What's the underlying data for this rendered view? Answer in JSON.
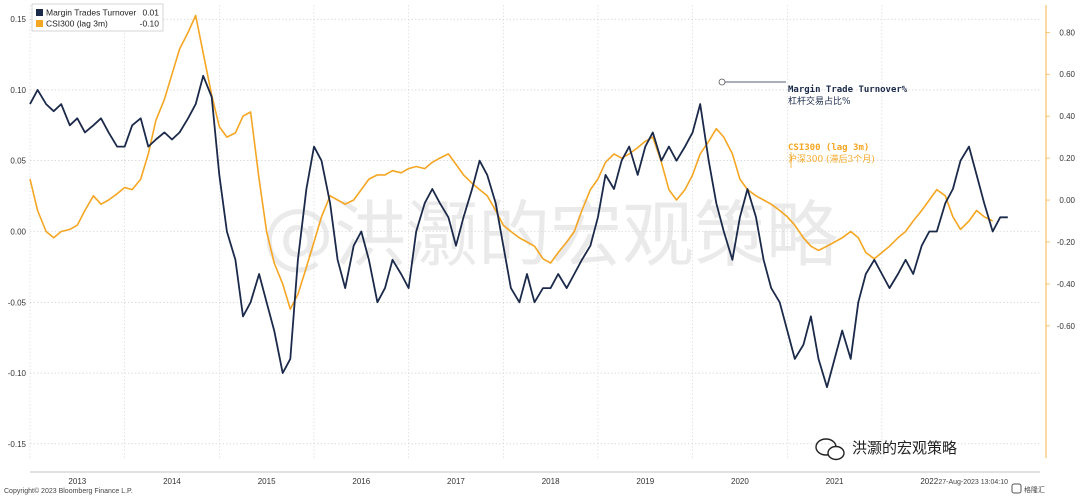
{
  "chart_data": {
    "type": "line",
    "legend": [
      {
        "label": "Margin Trades Turnover",
        "value": "0.01",
        "color": "#1b2a4a"
      },
      {
        "label": "CSI300 (lag 3m)",
        "value": "-0.10",
        "color": "#f5a623"
      }
    ],
    "left_axis": {
      "ylim": [
        -0.16,
        0.16
      ],
      "ticks": [
        "0.15",
        "0.10",
        "0.05",
        "0.00",
        "-0.05",
        "-0.10",
        "-0.15"
      ]
    },
    "right_axis": {
      "ylim": [
        -1.23,
        0.93
      ],
      "ticks": [
        "0.80",
        "0.60",
        "0.40",
        "0.20",
        "0.00",
        "-0.20",
        "-0.40",
        "-0.60"
      ]
    },
    "x_axis": {
      "range": [
        2013.0,
        2023.67
      ],
      "ticks": [
        "2013",
        "2014",
        "2015",
        "2016",
        "2017",
        "2018",
        "2019",
        "2020",
        "2021",
        "2022"
      ]
    },
    "series": [
      {
        "name": "Margin Trades Turnover",
        "axis": "left",
        "color": "#1b2a4a",
        "points": [
          [
            2013.0,
            0.09
          ],
          [
            2013.08,
            0.1
          ],
          [
            2013.17,
            0.09
          ],
          [
            2013.25,
            0.085
          ],
          [
            2013.33,
            0.09
          ],
          [
            2013.42,
            0.075
          ],
          [
            2013.5,
            0.08
          ],
          [
            2013.58,
            0.07
          ],
          [
            2013.67,
            0.075
          ],
          [
            2013.75,
            0.08
          ],
          [
            2013.83,
            0.07
          ],
          [
            2013.92,
            0.06
          ],
          [
            2014.0,
            0.06
          ],
          [
            2014.08,
            0.075
          ],
          [
            2014.17,
            0.08
          ],
          [
            2014.25,
            0.06
          ],
          [
            2014.33,
            0.065
          ],
          [
            2014.42,
            0.07
          ],
          [
            2014.5,
            0.065
          ],
          [
            2014.58,
            0.07
          ],
          [
            2014.67,
            0.08
          ],
          [
            2014.75,
            0.09
          ],
          [
            2014.83,
            0.11
          ],
          [
            2014.92,
            0.095
          ],
          [
            2015.0,
            0.04
          ],
          [
            2015.08,
            0.0
          ],
          [
            2015.17,
            -0.02
          ],
          [
            2015.25,
            -0.06
          ],
          [
            2015.33,
            -0.05
          ],
          [
            2015.42,
            -0.03
          ],
          [
            2015.5,
            -0.05
          ],
          [
            2015.58,
            -0.07
          ],
          [
            2015.67,
            -0.1
          ],
          [
            2015.75,
            -0.09
          ],
          [
            2015.83,
            -0.02
          ],
          [
            2015.92,
            0.03
          ],
          [
            2016.0,
            0.06
          ],
          [
            2016.08,
            0.05
          ],
          [
            2016.17,
            0.02
          ],
          [
            2016.25,
            -0.02
          ],
          [
            2016.33,
            -0.04
          ],
          [
            2016.42,
            -0.01
          ],
          [
            2016.5,
            0.0
          ],
          [
            2016.58,
            -0.02
          ],
          [
            2016.67,
            -0.05
          ],
          [
            2016.75,
            -0.04
          ],
          [
            2016.83,
            -0.02
          ],
          [
            2016.92,
            -0.03
          ],
          [
            2017.0,
            -0.04
          ],
          [
            2017.08,
            0.0
          ],
          [
            2017.17,
            0.02
          ],
          [
            2017.25,
            0.03
          ],
          [
            2017.33,
            0.02
          ],
          [
            2017.42,
            0.01
          ],
          [
            2017.5,
            -0.01
          ],
          [
            2017.58,
            0.01
          ],
          [
            2017.67,
            0.03
          ],
          [
            2017.75,
            0.05
          ],
          [
            2017.83,
            0.04
          ],
          [
            2017.92,
            0.02
          ],
          [
            2018.0,
            -0.01
          ],
          [
            2018.08,
            -0.04
          ],
          [
            2018.17,
            -0.05
          ],
          [
            2018.25,
            -0.03
          ],
          [
            2018.33,
            -0.05
          ],
          [
            2018.42,
            -0.04
          ],
          [
            2018.5,
            -0.04
          ],
          [
            2018.58,
            -0.03
          ],
          [
            2018.67,
            -0.04
          ],
          [
            2018.75,
            -0.03
          ],
          [
            2018.83,
            -0.02
          ],
          [
            2018.92,
            -0.01
          ],
          [
            2019.0,
            0.01
          ],
          [
            2019.08,
            0.04
          ],
          [
            2019.17,
            0.03
          ],
          [
            2019.25,
            0.05
          ],
          [
            2019.33,
            0.06
          ],
          [
            2019.42,
            0.04
          ],
          [
            2019.5,
            0.06
          ],
          [
            2019.58,
            0.07
          ],
          [
            2019.67,
            0.05
          ],
          [
            2019.75,
            0.06
          ],
          [
            2019.83,
            0.05
          ],
          [
            2019.92,
            0.06
          ],
          [
            2020.0,
            0.07
          ],
          [
            2020.08,
            0.09
          ],
          [
            2020.17,
            0.05
          ],
          [
            2020.25,
            0.02
          ],
          [
            2020.33,
            0.0
          ],
          [
            2020.42,
            -0.02
          ],
          [
            2020.5,
            0.01
          ],
          [
            2020.58,
            0.03
          ],
          [
            2020.67,
            0.01
          ],
          [
            2020.75,
            -0.02
          ],
          [
            2020.83,
            -0.04
          ],
          [
            2020.92,
            -0.05
          ],
          [
            2021.0,
            -0.07
          ],
          [
            2021.08,
            -0.09
          ],
          [
            2021.17,
            -0.08
          ],
          [
            2021.25,
            -0.06
          ],
          [
            2021.33,
            -0.09
          ],
          [
            2021.42,
            -0.11
          ],
          [
            2021.5,
            -0.09
          ],
          [
            2021.58,
            -0.07
          ],
          [
            2021.67,
            -0.09
          ],
          [
            2021.75,
            -0.05
          ],
          [
            2021.83,
            -0.03
          ],
          [
            2021.92,
            -0.02
          ],
          [
            2022.0,
            -0.03
          ],
          [
            2022.08,
            -0.04
          ],
          [
            2022.17,
            -0.03
          ],
          [
            2022.25,
            -0.02
          ],
          [
            2022.33,
            -0.03
          ],
          [
            2022.42,
            -0.01
          ],
          [
            2022.5,
            0.0
          ],
          [
            2022.58,
            0.0
          ],
          [
            2022.67,
            0.02
          ],
          [
            2022.75,
            0.03
          ],
          [
            2022.83,
            0.05
          ],
          [
            2022.92,
            0.06
          ],
          [
            2023.0,
            0.04
          ],
          [
            2023.08,
            0.02
          ],
          [
            2023.17,
            0.0
          ],
          [
            2023.25,
            0.01
          ],
          [
            2023.33,
            0.01
          ]
        ]
      },
      {
        "name": "CSI300 (lag 3m)",
        "axis": "right",
        "color": "#f5a623",
        "points": [
          [
            2013.0,
            0.1
          ],
          [
            2013.08,
            -0.05
          ],
          [
            2013.17,
            -0.15
          ],
          [
            2013.25,
            -0.18
          ],
          [
            2013.33,
            -0.15
          ],
          [
            2013.42,
            -0.14
          ],
          [
            2013.5,
            -0.12
          ],
          [
            2013.58,
            -0.05
          ],
          [
            2013.67,
            0.02
          ],
          [
            2013.75,
            -0.02
          ],
          [
            2013.83,
            0.0
          ],
          [
            2013.92,
            0.03
          ],
          [
            2014.0,
            0.06
          ],
          [
            2014.08,
            0.05
          ],
          [
            2014.17,
            0.1
          ],
          [
            2014.25,
            0.22
          ],
          [
            2014.33,
            0.38
          ],
          [
            2014.42,
            0.48
          ],
          [
            2014.5,
            0.6
          ],
          [
            2014.58,
            0.72
          ],
          [
            2014.67,
            0.8
          ],
          [
            2014.75,
            0.88
          ],
          [
            2014.83,
            0.7
          ],
          [
            2014.92,
            0.5
          ],
          [
            2015.0,
            0.35
          ],
          [
            2015.08,
            0.3
          ],
          [
            2015.17,
            0.32
          ],
          [
            2015.25,
            0.4
          ],
          [
            2015.33,
            0.42
          ],
          [
            2015.42,
            0.1
          ],
          [
            2015.5,
            -0.15
          ],
          [
            2015.58,
            -0.3
          ],
          [
            2015.67,
            -0.4
          ],
          [
            2015.75,
            -0.52
          ],
          [
            2015.83,
            -0.45
          ],
          [
            2015.92,
            -0.32
          ],
          [
            2016.0,
            -0.2
          ],
          [
            2016.08,
            -0.08
          ],
          [
            2016.17,
            0.02
          ],
          [
            2016.25,
            0.0
          ],
          [
            2016.33,
            -0.02
          ],
          [
            2016.42,
            0.0
          ],
          [
            2016.5,
            0.05
          ],
          [
            2016.58,
            0.1
          ],
          [
            2016.67,
            0.12
          ],
          [
            2016.75,
            0.12
          ],
          [
            2016.83,
            0.14
          ],
          [
            2016.92,
            0.13
          ],
          [
            2017.0,
            0.15
          ],
          [
            2017.08,
            0.16
          ],
          [
            2017.17,
            0.15
          ],
          [
            2017.25,
            0.18
          ],
          [
            2017.33,
            0.2
          ],
          [
            2017.42,
            0.22
          ],
          [
            2017.5,
            0.17
          ],
          [
            2017.58,
            0.12
          ],
          [
            2017.67,
            0.08
          ],
          [
            2017.75,
            0.05
          ],
          [
            2017.83,
            0.02
          ],
          [
            2017.92,
            -0.05
          ],
          [
            2018.0,
            -0.12
          ],
          [
            2018.08,
            -0.15
          ],
          [
            2018.17,
            -0.18
          ],
          [
            2018.25,
            -0.2
          ],
          [
            2018.33,
            -0.22
          ],
          [
            2018.42,
            -0.28
          ],
          [
            2018.5,
            -0.3
          ],
          [
            2018.58,
            -0.25
          ],
          [
            2018.67,
            -0.2
          ],
          [
            2018.75,
            -0.15
          ],
          [
            2018.83,
            -0.05
          ],
          [
            2018.92,
            0.05
          ],
          [
            2019.0,
            0.1
          ],
          [
            2019.08,
            0.18
          ],
          [
            2019.17,
            0.22
          ],
          [
            2019.25,
            0.2
          ],
          [
            2019.33,
            0.22
          ],
          [
            2019.42,
            0.25
          ],
          [
            2019.5,
            0.28
          ],
          [
            2019.58,
            0.3
          ],
          [
            2019.67,
            0.18
          ],
          [
            2019.75,
            0.05
          ],
          [
            2019.83,
            0.0
          ],
          [
            2019.92,
            0.05
          ],
          [
            2020.0,
            0.12
          ],
          [
            2020.08,
            0.22
          ],
          [
            2020.17,
            0.28
          ],
          [
            2020.25,
            0.34
          ],
          [
            2020.33,
            0.3
          ],
          [
            2020.42,
            0.22
          ],
          [
            2020.5,
            0.1
          ],
          [
            2020.58,
            0.05
          ],
          [
            2020.67,
            0.02
          ],
          [
            2020.75,
            0.0
          ],
          [
            2020.83,
            -0.02
          ],
          [
            2020.92,
            -0.05
          ],
          [
            2021.0,
            -0.08
          ],
          [
            2021.08,
            -0.12
          ],
          [
            2021.17,
            -0.18
          ],
          [
            2021.25,
            -0.22
          ],
          [
            2021.33,
            -0.24
          ],
          [
            2021.42,
            -0.22
          ],
          [
            2021.5,
            -0.2
          ],
          [
            2021.58,
            -0.18
          ],
          [
            2021.67,
            -0.15
          ],
          [
            2021.75,
            -0.18
          ],
          [
            2021.83,
            -0.25
          ],
          [
            2021.92,
            -0.28
          ],
          [
            2022.0,
            -0.25
          ],
          [
            2022.08,
            -0.22
          ],
          [
            2022.17,
            -0.18
          ],
          [
            2022.25,
            -0.15
          ],
          [
            2022.33,
            -0.1
          ],
          [
            2022.42,
            -0.05
          ],
          [
            2022.5,
            0.0
          ],
          [
            2022.58,
            0.05
          ],
          [
            2022.67,
            0.02
          ],
          [
            2022.75,
            -0.08
          ],
          [
            2022.83,
            -0.14
          ],
          [
            2022.92,
            -0.1
          ],
          [
            2023.0,
            -0.05
          ],
          [
            2023.08,
            -0.08
          ],
          [
            2023.17,
            -0.1
          ]
        ]
      }
    ],
    "annotations": [
      {
        "text": "Margin Trade Turnover%",
        "color": "#1b2a4a"
      },
      {
        "text": "杠杆交易占比%",
        "color": "#1b2a4a"
      },
      {
        "text": "CSI300 (lag 3m)",
        "color": "#f5a623"
      },
      {
        "text": "沪深300 (滞后3个月)",
        "color": "#f5a623"
      }
    ],
    "grid": true,
    "legend_position": "top-left"
  },
  "watermark": {
    "text": "@洪灏的宏观策略",
    "label": "洪灏的宏观策略",
    "brand": "格隆汇"
  },
  "footer": {
    "copyright": "Copyright© 2023 Bloomberg Finance L.P.",
    "timestamp": "27-Aug-2023 13:04:10"
  }
}
